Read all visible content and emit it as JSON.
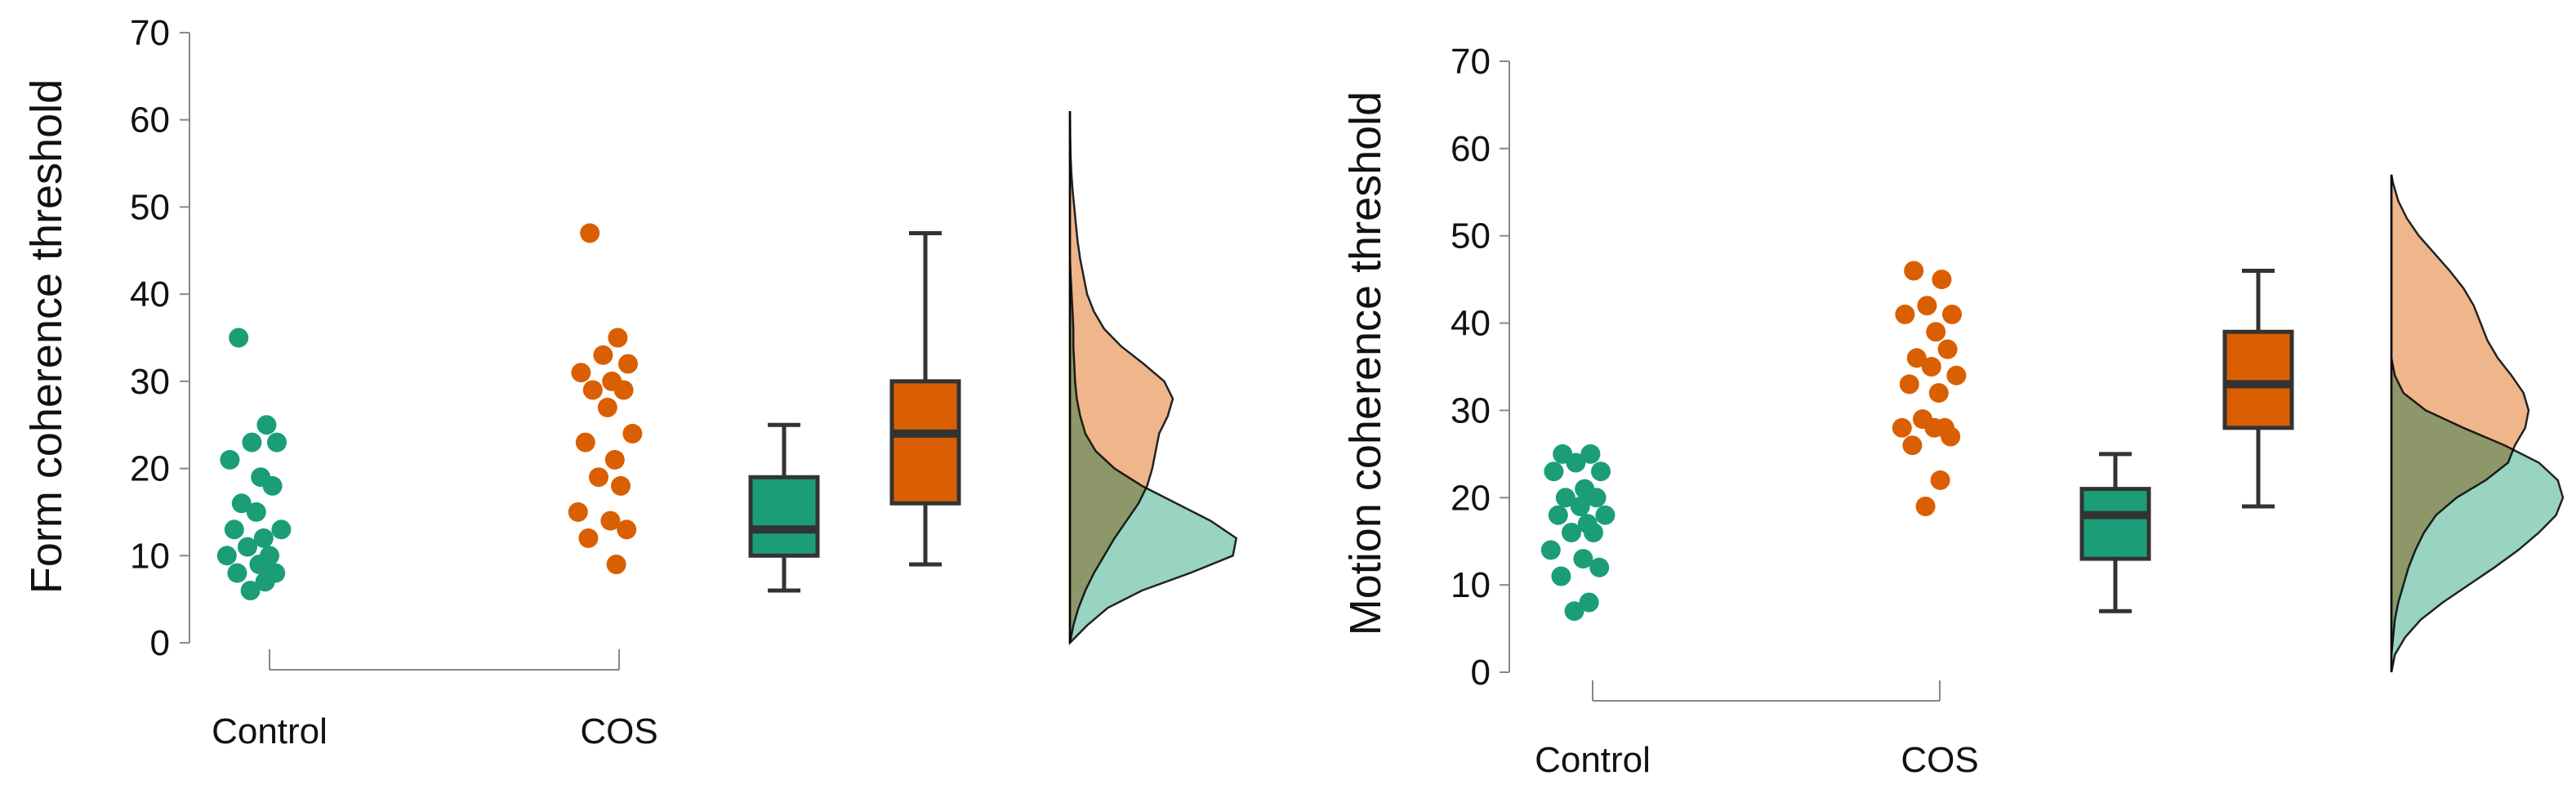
{
  "chart_data": [
    {
      "type": "raincloud",
      "ylabel": "Form coherence threshold",
      "ylim": [
        0,
        70
      ],
      "yticks": [
        0,
        10,
        20,
        30,
        40,
        50,
        60,
        70
      ],
      "categories": [
        "Control",
        "COS"
      ],
      "colors": {
        "Control": "#1b9e77",
        "COS": "#d95f02",
        "Control_density": "#8dcfba",
        "COS_density": "#edae80"
      },
      "points": {
        "Control": [
          35,
          25,
          23,
          23,
          21,
          19,
          18,
          16,
          15,
          13,
          13,
          12,
          11,
          10,
          10,
          9,
          8,
          8,
          7,
          6
        ],
        "COS": [
          47,
          35,
          33,
          32,
          31,
          30,
          29,
          29,
          27,
          24,
          23,
          21,
          19,
          18,
          15,
          14,
          13,
          12,
          9
        ]
      },
      "boxplots": {
        "Control": {
          "min": 6,
          "q1": 10,
          "median": 13,
          "q3": 19,
          "max": 25
        },
        "COS": {
          "min": 9,
          "q1": 16,
          "median": 24,
          "q3": 30,
          "max": 47
        }
      },
      "density": {
        "y": [
          0,
          2,
          4,
          6,
          8,
          10,
          12,
          14,
          16,
          18,
          20,
          22,
          24,
          26,
          28,
          30,
          32,
          34,
          36,
          38,
          40,
          42,
          44,
          46,
          48,
          50,
          52,
          54,
          56,
          58,
          60,
          61
        ],
        "Control": [
          0.0,
          0.1,
          0.22,
          0.42,
          0.7,
          0.95,
          0.97,
          0.82,
          0.62,
          0.42,
          0.26,
          0.15,
          0.09,
          0.06,
          0.04,
          0.03,
          0.025,
          0.02,
          0.02,
          0.015,
          0.01,
          0.005,
          0.0,
          0.0,
          0.0,
          0.0,
          0.0,
          0.0,
          0.0,
          0.0,
          0.0,
          0.0
        ],
        "COS": [
          0.0,
          0.02,
          0.05,
          0.09,
          0.14,
          0.2,
          0.26,
          0.33,
          0.4,
          0.45,
          0.48,
          0.5,
          0.52,
          0.57,
          0.6,
          0.55,
          0.43,
          0.3,
          0.2,
          0.14,
          0.1,
          0.08,
          0.06,
          0.045,
          0.035,
          0.025,
          0.015,
          0.008,
          0.004,
          0.002,
          0.001,
          0.0
        ]
      }
    },
    {
      "type": "raincloud",
      "ylabel": "Motion coherence threshold",
      "ylim": [
        0,
        70
      ],
      "yticks": [
        0,
        10,
        20,
        30,
        40,
        50,
        60,
        70
      ],
      "categories": [
        "Control",
        "COS"
      ],
      "colors": {
        "Control": "#1b9e77",
        "COS": "#d95f02",
        "Control_density": "#8dcfba",
        "COS_density": "#edae80"
      },
      "points": {
        "Control": [
          25,
          25,
          24,
          23,
          23,
          21,
          20,
          20,
          19,
          18,
          18,
          17,
          16,
          16,
          14,
          13,
          12,
          11,
          8,
          7
        ],
        "COS": [
          46,
          45,
          42,
          41,
          41,
          39,
          37,
          36,
          35,
          34,
          33,
          32,
          29,
          28,
          28,
          28,
          27,
          26,
          22,
          19
        ]
      },
      "boxplots": {
        "Control": {
          "min": 7,
          "q1": 13,
          "median": 18,
          "q3": 21,
          "max": 25
        },
        "COS": {
          "min": 19,
          "q1": 28,
          "median": 33,
          "q3": 39,
          "max": 46
        }
      },
      "density": {
        "y": [
          0,
          2,
          4,
          6,
          8,
          10,
          12,
          14,
          16,
          18,
          20,
          22,
          24,
          26,
          28,
          30,
          32,
          34,
          36,
          38,
          40,
          42,
          44,
          46,
          48,
          50,
          52,
          54,
          56,
          57
        ],
        "Control": [
          0.0,
          0.02,
          0.08,
          0.17,
          0.3,
          0.45,
          0.6,
          0.74,
          0.86,
          0.96,
          1.0,
          0.97,
          0.86,
          0.66,
          0.42,
          0.2,
          0.07,
          0.02,
          0.0,
          0.0,
          0.0,
          0.0,
          0.0,
          0.0,
          0.0,
          0.0,
          0.0,
          0.0,
          0.0,
          0.0
        ],
        "COS": [
          0.0,
          0.0,
          0.01,
          0.02,
          0.04,
          0.07,
          0.1,
          0.14,
          0.19,
          0.26,
          0.38,
          0.55,
          0.68,
          0.72,
          0.78,
          0.8,
          0.77,
          0.7,
          0.62,
          0.56,
          0.52,
          0.48,
          0.42,
          0.34,
          0.25,
          0.16,
          0.09,
          0.04,
          0.01,
          0.0
        ]
      }
    }
  ]
}
